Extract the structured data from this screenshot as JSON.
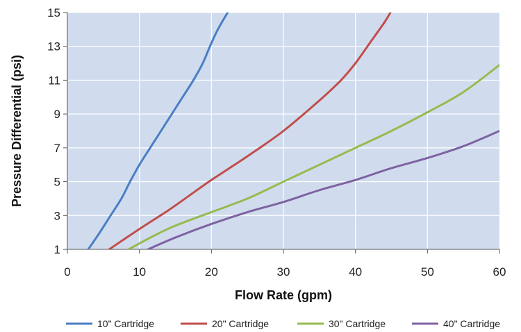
{
  "chart_data": {
    "type": "line",
    "title": "",
    "xlabel": "Flow Rate (gpm)",
    "ylabel": "Pressure Differential (psi)",
    "xlim": [
      0,
      60
    ],
    "ylim": [
      1,
      15
    ],
    "x_ticks": [
      "0",
      "10",
      "20",
      "30",
      "40",
      "50",
      "60"
    ],
    "y_ticks": [
      "1",
      "3",
      "5",
      "7",
      "9",
      "11",
      "13",
      "15"
    ],
    "grid": true,
    "plot_background": "#d0dced",
    "grid_color": "#ffffff",
    "legend_position": "bottom",
    "series": [
      {
        "name": "10\" Cartridge",
        "color": "#4a7ec4",
        "points": [
          [
            2.9,
            1
          ],
          [
            4.5,
            2
          ],
          [
            6,
            3
          ],
          [
            7.5,
            4
          ],
          [
            8.7,
            5
          ],
          [
            10,
            6
          ],
          [
            11.5,
            7
          ],
          [
            13,
            8
          ],
          [
            14.5,
            9
          ],
          [
            16,
            10
          ],
          [
            17.5,
            11
          ],
          [
            18.8,
            12
          ],
          [
            19.8,
            13
          ],
          [
            20.9,
            14
          ],
          [
            22.4,
            15.1
          ]
        ]
      },
      {
        "name": "20\" Cartridge",
        "color": "#c04e4b",
        "points": [
          [
            5.8,
            1
          ],
          [
            10,
            2.2
          ],
          [
            14,
            3.3
          ],
          [
            17,
            4.2
          ],
          [
            20,
            5.1
          ],
          [
            25,
            6.5
          ],
          [
            30,
            8
          ],
          [
            35,
            9.8
          ],
          [
            38,
            11
          ],
          [
            40,
            12
          ],
          [
            42,
            13.2
          ],
          [
            44,
            14.4
          ],
          [
            45,
            15.1
          ]
        ]
      },
      {
        "name": "30\" Cartridge",
        "color": "#95bb4f",
        "points": [
          [
            8.5,
            1
          ],
          [
            12,
            1.8
          ],
          [
            15,
            2.4
          ],
          [
            20,
            3.2
          ],
          [
            25,
            4
          ],
          [
            30,
            5
          ],
          [
            35,
            6
          ],
          [
            40,
            7
          ],
          [
            45,
            8
          ],
          [
            50,
            9.1
          ],
          [
            55,
            10.3
          ],
          [
            60,
            11.9
          ]
        ]
      },
      {
        "name": "40\" Cartridge",
        "color": "#7e62a2",
        "points": [
          [
            11.2,
            1
          ],
          [
            15,
            1.7
          ],
          [
            20,
            2.5
          ],
          [
            25,
            3.2
          ],
          [
            30,
            3.8
          ],
          [
            35,
            4.5
          ],
          [
            40,
            5.1
          ],
          [
            45,
            5.8
          ],
          [
            50,
            6.4
          ],
          [
            55,
            7.1
          ],
          [
            60,
            8
          ]
        ]
      }
    ]
  }
}
